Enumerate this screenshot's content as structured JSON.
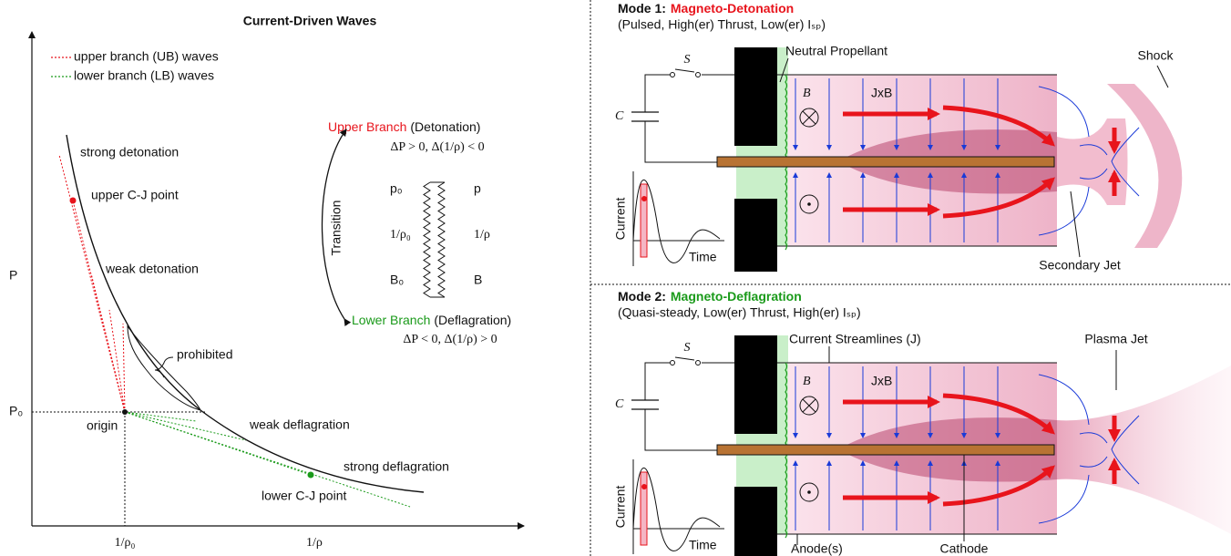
{
  "left": {
    "title": "Current-Driven Waves",
    "legend": [
      {
        "label": "upper branch (UB) waves",
        "color": "#e8141c"
      },
      {
        "label": "lower branch (LB) waves",
        "color": "#1a9a1a"
      }
    ],
    "axes": {
      "y": "P",
      "y0": "P₀",
      "x0": "1/ρ₀",
      "x": "1/ρ"
    },
    "curve_labels": {
      "strong_detonation": "strong detonation",
      "upper_cj": "upper C-J point",
      "weak_detonation": "weak detonation",
      "prohibited": "prohibited",
      "origin": "origin",
      "weak_deflagration": "weak deflagration",
      "strong_deflagration": "strong deflagration",
      "lower_cj": "lower C-J point"
    },
    "inset": {
      "upper": "Upper Branch",
      "upper_kind": "(Detonation)",
      "upper_cond": "ΔP > 0, Δ(1/ρ) < 0",
      "transition": "Transition",
      "left_states": [
        "p₀",
        "1/ρ₀",
        "B₀"
      ],
      "right_states": [
        "p",
        "1/ρ",
        "B"
      ],
      "lower": "Lower Branch",
      "lower_kind": "(Deflagration)",
      "lower_cond": "ΔP < 0, Δ(1/ρ) > 0"
    }
  },
  "modes": [
    {
      "label": "Mode 1:",
      "name": "Magneto-Detonation",
      "name_color": "#e8141c",
      "subtitle": "(Pulsed, High(er) Thrust, Low(er) Iₛₚ)",
      "switch": "S",
      "capacitor": "C",
      "field": "B⃗",
      "force": "JxB",
      "current_axis": "Current",
      "time_axis": "Time",
      "annotations": [
        "Neutral Propellant",
        "Shock",
        "Secondary Jet"
      ]
    },
    {
      "label": "Mode 2:",
      "name": "Magneto-Deflagration",
      "name_color": "#1a9a1a",
      "subtitle": "(Quasi-steady, Low(er) Thrust, High(er) Iₛₚ)",
      "switch": "S",
      "capacitor": "C",
      "field": "B⃗",
      "force": "JxB",
      "current_axis": "Current",
      "time_axis": "Time",
      "annotations": [
        "Current Streamlines (J)",
        "Plasma Jet",
        "Anode(s)",
        "Cathode"
      ]
    }
  ]
}
